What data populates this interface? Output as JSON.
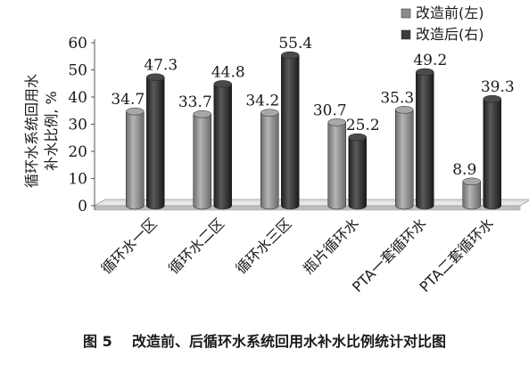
{
  "caption": "图 5    改造前、后循环水系统回用水补水比例统计对比图",
  "chart_data": {
    "type": "bar",
    "title": "",
    "ylabel_line1": "循环水系统回用水",
    "ylabel_line2": "补水比例, %",
    "ylim": [
      0,
      60
    ],
    "yticks": [
      0,
      10,
      20,
      30,
      40,
      50,
      60
    ],
    "categories": [
      "循环水一区",
      "循环水二区",
      "循环水三区",
      "瓶片循环水",
      "PTA一套循环水",
      "PTA二套循环水"
    ],
    "series": [
      {
        "name": "改造前(左)",
        "color": "#8c8c8c",
        "values": [
          34.7,
          33.7,
          34.2,
          30.7,
          35.3,
          8.9
        ]
      },
      {
        "name": "改造后(右)",
        "color": "#3c3c3c",
        "values": [
          47.3,
          44.8,
          55.4,
          25.2,
          49.2,
          39.3
        ]
      }
    ],
    "bar_style": "3d-cylinder",
    "grid": false,
    "legend_position": "top-right"
  }
}
